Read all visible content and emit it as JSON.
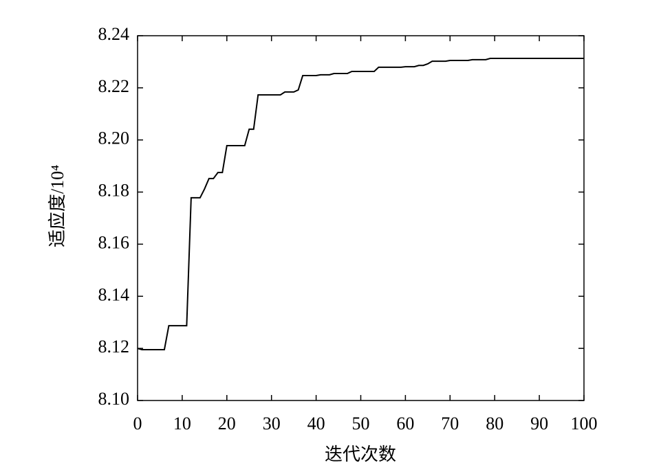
{
  "chart_data": {
    "type": "line",
    "xlabel": "迭代次数",
    "ylabel": "适应度/10⁴",
    "color": "#000000",
    "x": [
      0,
      1,
      2,
      3,
      4,
      5,
      6,
      7,
      8,
      9,
      10,
      11,
      12,
      13,
      14,
      15,
      16,
      17,
      18,
      19,
      20,
      21,
      22,
      23,
      24,
      25,
      26,
      27,
      28,
      29,
      30,
      31,
      32,
      33,
      34,
      35,
      36,
      37,
      38,
      39,
      40,
      41,
      42,
      43,
      44,
      45,
      46,
      47,
      48,
      49,
      50,
      51,
      52,
      53,
      54,
      55,
      56,
      57,
      58,
      59,
      60,
      61,
      62,
      63,
      64,
      65,
      66,
      67,
      68,
      69,
      70,
      71,
      72,
      73,
      74,
      75,
      76,
      77,
      78,
      79,
      80,
      81,
      82,
      83,
      84,
      85,
      86,
      87,
      88,
      89,
      90,
      91,
      92,
      93,
      94,
      95,
      96,
      97,
      98,
      99,
      100
    ],
    "values": [
      8.12,
      8.1195,
      8.1195,
      8.1195,
      8.1195,
      8.1195,
      8.1195,
      8.1287,
      8.1287,
      8.1287,
      8.1287,
      8.1287,
      8.1778,
      8.1778,
      8.1778,
      8.1812,
      8.1852,
      8.1852,
      8.1875,
      8.1875,
      8.1978,
      8.1978,
      8.1978,
      8.1978,
      8.1978,
      8.2041,
      8.2041,
      8.2173,
      8.2173,
      8.2173,
      8.2173,
      8.2173,
      8.2173,
      8.2184,
      8.2184,
      8.2184,
      8.2192,
      8.2247,
      8.2247,
      8.2247,
      8.2247,
      8.225,
      8.225,
      8.225,
      8.2255,
      8.2255,
      8.2255,
      8.2255,
      8.2263,
      8.2263,
      8.2263,
      8.2263,
      8.2263,
      8.2263,
      8.2279,
      8.2279,
      8.2279,
      8.2279,
      8.2279,
      8.2279,
      8.2281,
      8.2281,
      8.2281,
      8.2286,
      8.2286,
      8.2292,
      8.2302,
      8.2302,
      8.2302,
      8.2302,
      8.2305,
      8.2305,
      8.2305,
      8.2305,
      8.2305,
      8.2308,
      8.2308,
      8.2308,
      8.2308,
      8.2313,
      8.2313,
      8.2313,
      8.2313,
      8.2313,
      8.2313,
      8.2313,
      8.2313,
      8.2313,
      8.2313,
      8.2313,
      8.2313,
      8.2313,
      8.2313,
      8.2313,
      8.2313,
      8.2313,
      8.2313,
      8.2313,
      8.2313,
      8.2313,
      8.2313
    ],
    "xlim": [
      0,
      100
    ],
    "xticks": [
      0,
      10,
      20,
      30,
      40,
      50,
      60,
      70,
      80,
      90,
      100
    ],
    "ylim": [
      8.1,
      8.24
    ],
    "yticks": [
      {
        "value": 8.1,
        "label": "8.10"
      },
      8.12,
      8.14,
      8.16,
      8.18,
      {
        "value": 8.2,
        "label": "8.20"
      },
      8.22,
      8.24
    ]
  }
}
